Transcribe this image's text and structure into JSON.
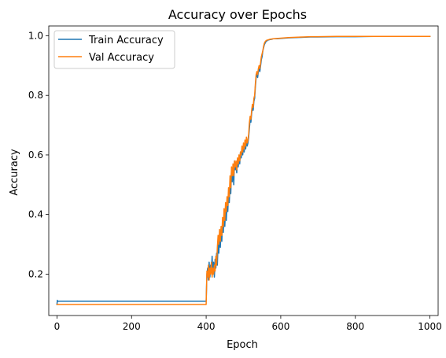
{
  "chart_data": {
    "type": "line",
    "title": "Accuracy over Epochs",
    "xlabel": "Epoch",
    "ylabel": "Accuracy",
    "xlim": [
      -22,
      1022
    ],
    "ylim": [
      0.061,
      1.033
    ],
    "xticks": [
      0,
      200,
      400,
      600,
      800,
      1000
    ],
    "yticks": [
      0.2,
      0.4,
      0.6,
      0.8,
      1.0
    ],
    "xtick_labels": [
      "0",
      "200",
      "400",
      "600",
      "800",
      "1000"
    ],
    "ytick_labels": [
      "0.2",
      "0.4",
      "0.6",
      "0.8",
      "1.0"
    ],
    "legend_position": "upper-left",
    "grid": false,
    "series": [
      {
        "name": "Train Accuracy",
        "color": "#1f77b4",
        "points": [
          [
            0,
            0.098
          ],
          [
            1,
            0.112
          ],
          [
            2,
            0.108
          ],
          [
            5,
            0.109
          ],
          [
            50,
            0.109
          ],
          [
            100,
            0.109
          ],
          [
            150,
            0.109
          ],
          [
            200,
            0.109
          ],
          [
            250,
            0.109
          ],
          [
            300,
            0.109
          ],
          [
            350,
            0.109
          ],
          [
            400,
            0.109
          ],
          [
            402,
            0.2
          ],
          [
            404,
            0.22
          ],
          [
            406,
            0.18
          ],
          [
            408,
            0.24
          ],
          [
            410,
            0.19
          ],
          [
            412,
            0.23
          ],
          [
            414,
            0.21
          ],
          [
            416,
            0.26
          ],
          [
            418,
            0.2
          ],
          [
            420,
            0.24
          ],
          [
            422,
            0.19
          ],
          [
            424,
            0.25
          ],
          [
            426,
            0.22
          ],
          [
            428,
            0.27
          ],
          [
            430,
            0.23
          ],
          [
            432,
            0.31
          ],
          [
            434,
            0.27
          ],
          [
            436,
            0.33
          ],
          [
            438,
            0.29
          ],
          [
            440,
            0.35
          ],
          [
            442,
            0.31
          ],
          [
            444,
            0.38
          ],
          [
            446,
            0.34
          ],
          [
            448,
            0.4
          ],
          [
            450,
            0.36
          ],
          [
            452,
            0.42
          ],
          [
            454,
            0.38
          ],
          [
            456,
            0.44
          ],
          [
            458,
            0.41
          ],
          [
            460,
            0.47
          ],
          [
            462,
            0.44
          ],
          [
            464,
            0.5
          ],
          [
            466,
            0.47
          ],
          [
            468,
            0.55
          ],
          [
            470,
            0.51
          ],
          [
            472,
            0.56
          ],
          [
            474,
            0.5
          ],
          [
            476,
            0.58
          ],
          [
            478,
            0.55
          ],
          [
            480,
            0.57
          ],
          [
            482,
            0.54
          ],
          [
            484,
            0.58
          ],
          [
            486,
            0.56
          ],
          [
            488,
            0.59
          ],
          [
            490,
            0.57
          ],
          [
            492,
            0.61
          ],
          [
            494,
            0.59
          ],
          [
            496,
            0.62
          ],
          [
            498,
            0.6
          ],
          [
            500,
            0.63
          ],
          [
            502,
            0.61
          ],
          [
            504,
            0.64
          ],
          [
            506,
            0.62
          ],
          [
            508,
            0.65
          ],
          [
            510,
            0.63
          ],
          [
            512,
            0.64
          ],
          [
            514,
            0.66
          ],
          [
            516,
            0.69
          ],
          [
            518,
            0.72
          ],
          [
            520,
            0.71
          ],
          [
            522,
            0.74
          ],
          [
            524,
            0.76
          ],
          [
            526,
            0.75
          ],
          [
            528,
            0.78
          ],
          [
            530,
            0.79
          ],
          [
            532,
            0.83
          ],
          [
            534,
            0.86
          ],
          [
            536,
            0.87
          ],
          [
            538,
            0.86
          ],
          [
            540,
            0.88
          ],
          [
            542,
            0.89
          ],
          [
            544,
            0.88
          ],
          [
            546,
            0.9
          ],
          [
            548,
            0.92
          ],
          [
            550,
            0.93
          ],
          [
            552,
            0.95
          ],
          [
            554,
            0.96
          ],
          [
            556,
            0.97
          ],
          [
            558,
            0.975
          ],
          [
            560,
            0.98
          ],
          [
            562,
            0.982
          ],
          [
            565,
            0.985
          ],
          [
            570,
            0.987
          ],
          [
            575,
            0.988
          ],
          [
            580,
            0.99
          ],
          [
            590,
            0.99
          ],
          [
            600,
            0.991
          ],
          [
            620,
            0.993
          ],
          [
            640,
            0.994
          ],
          [
            660,
            0.995
          ],
          [
            680,
            0.996
          ],
          [
            700,
            0.996
          ],
          [
            750,
            0.997
          ],
          [
            800,
            0.997
          ],
          [
            850,
            0.998
          ],
          [
            900,
            0.998
          ],
          [
            950,
            0.998
          ],
          [
            1000,
            0.998
          ]
        ]
      },
      {
        "name": "Val Accuracy",
        "color": "#ff7f0e",
        "points": [
          [
            0,
            0.098
          ],
          [
            5,
            0.098
          ],
          [
            50,
            0.098
          ],
          [
            100,
            0.098
          ],
          [
            150,
            0.098
          ],
          [
            200,
            0.098
          ],
          [
            250,
            0.098
          ],
          [
            300,
            0.098
          ],
          [
            350,
            0.098
          ],
          [
            400,
            0.098
          ],
          [
            402,
            0.21
          ],
          [
            404,
            0.19
          ],
          [
            406,
            0.23
          ],
          [
            408,
            0.18
          ],
          [
            410,
            0.22
          ],
          [
            412,
            0.2
          ],
          [
            414,
            0.24
          ],
          [
            416,
            0.19
          ],
          [
            418,
            0.22
          ],
          [
            420,
            0.2
          ],
          [
            422,
            0.23
          ],
          [
            424,
            0.21
          ],
          [
            426,
            0.26
          ],
          [
            428,
            0.23
          ],
          [
            430,
            0.29
          ],
          [
            432,
            0.33
          ],
          [
            434,
            0.3
          ],
          [
            436,
            0.35
          ],
          [
            438,
            0.31
          ],
          [
            440,
            0.36
          ],
          [
            442,
            0.33
          ],
          [
            444,
            0.39
          ],
          [
            446,
            0.36
          ],
          [
            448,
            0.42
          ],
          [
            450,
            0.38
          ],
          [
            452,
            0.44
          ],
          [
            454,
            0.41
          ],
          [
            456,
            0.46
          ],
          [
            458,
            0.43
          ],
          [
            460,
            0.49
          ],
          [
            462,
            0.46
          ],
          [
            464,
            0.53
          ],
          [
            466,
            0.49
          ],
          [
            468,
            0.56
          ],
          [
            470,
            0.53
          ],
          [
            472,
            0.57
          ],
          [
            474,
            0.53
          ],
          [
            476,
            0.58
          ],
          [
            478,
            0.56
          ],
          [
            480,
            0.58
          ],
          [
            482,
            0.55
          ],
          [
            484,
            0.59
          ],
          [
            486,
            0.57
          ],
          [
            488,
            0.6
          ],
          [
            490,
            0.58
          ],
          [
            492,
            0.61
          ],
          [
            494,
            0.6
          ],
          [
            496,
            0.63
          ],
          [
            498,
            0.61
          ],
          [
            500,
            0.64
          ],
          [
            502,
            0.62
          ],
          [
            504,
            0.65
          ],
          [
            506,
            0.63
          ],
          [
            508,
            0.66
          ],
          [
            510,
            0.64
          ],
          [
            512,
            0.65
          ],
          [
            514,
            0.67
          ],
          [
            516,
            0.71
          ],
          [
            518,
            0.73
          ],
          [
            520,
            0.72
          ],
          [
            522,
            0.75
          ],
          [
            524,
            0.77
          ],
          [
            526,
            0.76
          ],
          [
            528,
            0.79
          ],
          [
            530,
            0.8
          ],
          [
            532,
            0.84
          ],
          [
            534,
            0.87
          ],
          [
            536,
            0.88
          ],
          [
            538,
            0.87
          ],
          [
            540,
            0.89
          ],
          [
            542,
            0.9
          ],
          [
            544,
            0.89
          ],
          [
            546,
            0.91
          ],
          [
            548,
            0.93
          ],
          [
            550,
            0.94
          ],
          [
            552,
            0.95
          ],
          [
            554,
            0.965
          ],
          [
            556,
            0.975
          ],
          [
            558,
            0.98
          ],
          [
            560,
            0.983
          ],
          [
            562,
            0.985
          ],
          [
            565,
            0.986
          ],
          [
            570,
            0.988
          ],
          [
            575,
            0.989
          ],
          [
            580,
            0.99
          ],
          [
            590,
            0.991
          ],
          [
            600,
            0.992
          ],
          [
            620,
            0.994
          ],
          [
            640,
            0.995
          ],
          [
            660,
            0.996
          ],
          [
            680,
            0.997
          ],
          [
            700,
            0.997
          ],
          [
            750,
            0.998
          ],
          [
            800,
            0.998
          ],
          [
            850,
            0.998
          ],
          [
            900,
            0.998
          ],
          [
            950,
            0.998
          ],
          [
            1000,
            0.998
          ]
        ]
      }
    ]
  }
}
